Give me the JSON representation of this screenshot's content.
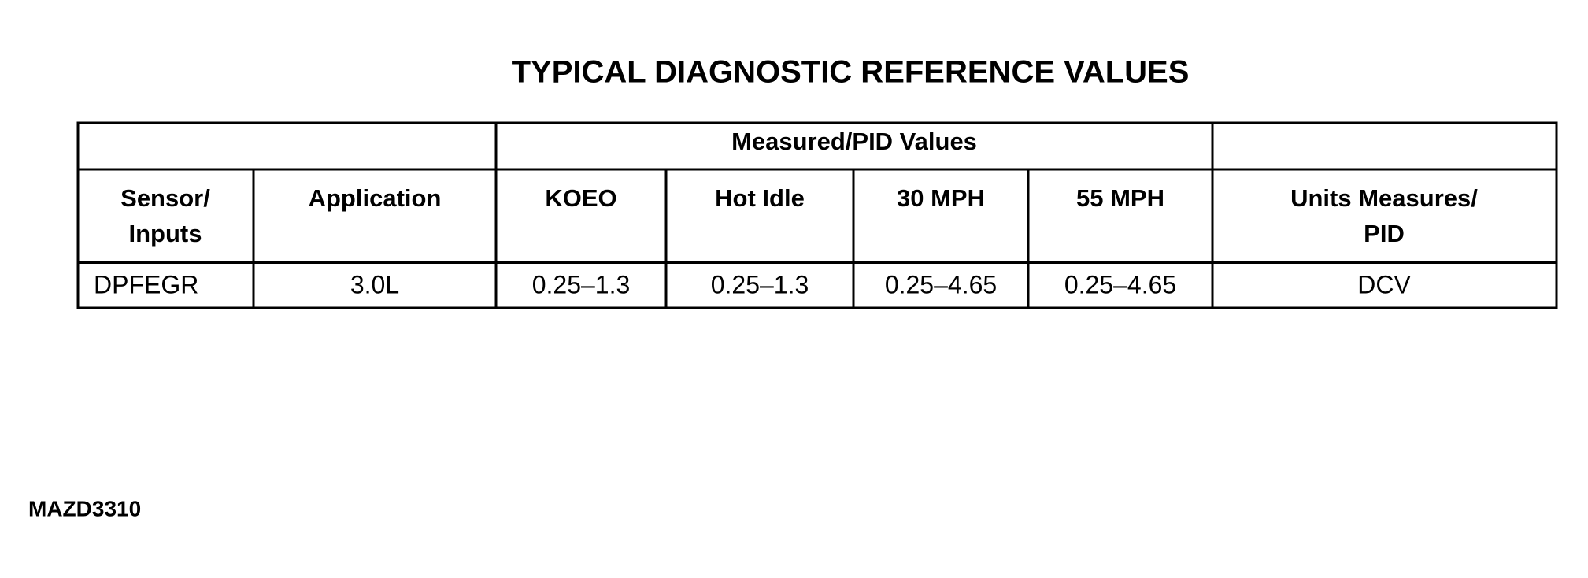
{
  "header": {
    "title": "TYPICAL DIAGNOSTIC REFERENCE VALUES"
  },
  "table": {
    "group_header": "Measured/PID Values",
    "columns": [
      [
        "Sensor/",
        "Inputs"
      ],
      [
        "Application"
      ],
      [
        "KOEO"
      ],
      [
        "Hot Idle"
      ],
      [
        "30 MPH"
      ],
      [
        "55 MPH"
      ],
      [
        "Units Measures/",
        "PID"
      ]
    ],
    "rows": [
      [
        "DPFEGR",
        "3.0L",
        "0.25–1.3",
        "0.25–1.3",
        "0.25–4.65",
        "0.25–4.65",
        "DCV"
      ]
    ]
  },
  "footer": {
    "code": "MAZD3310"
  }
}
